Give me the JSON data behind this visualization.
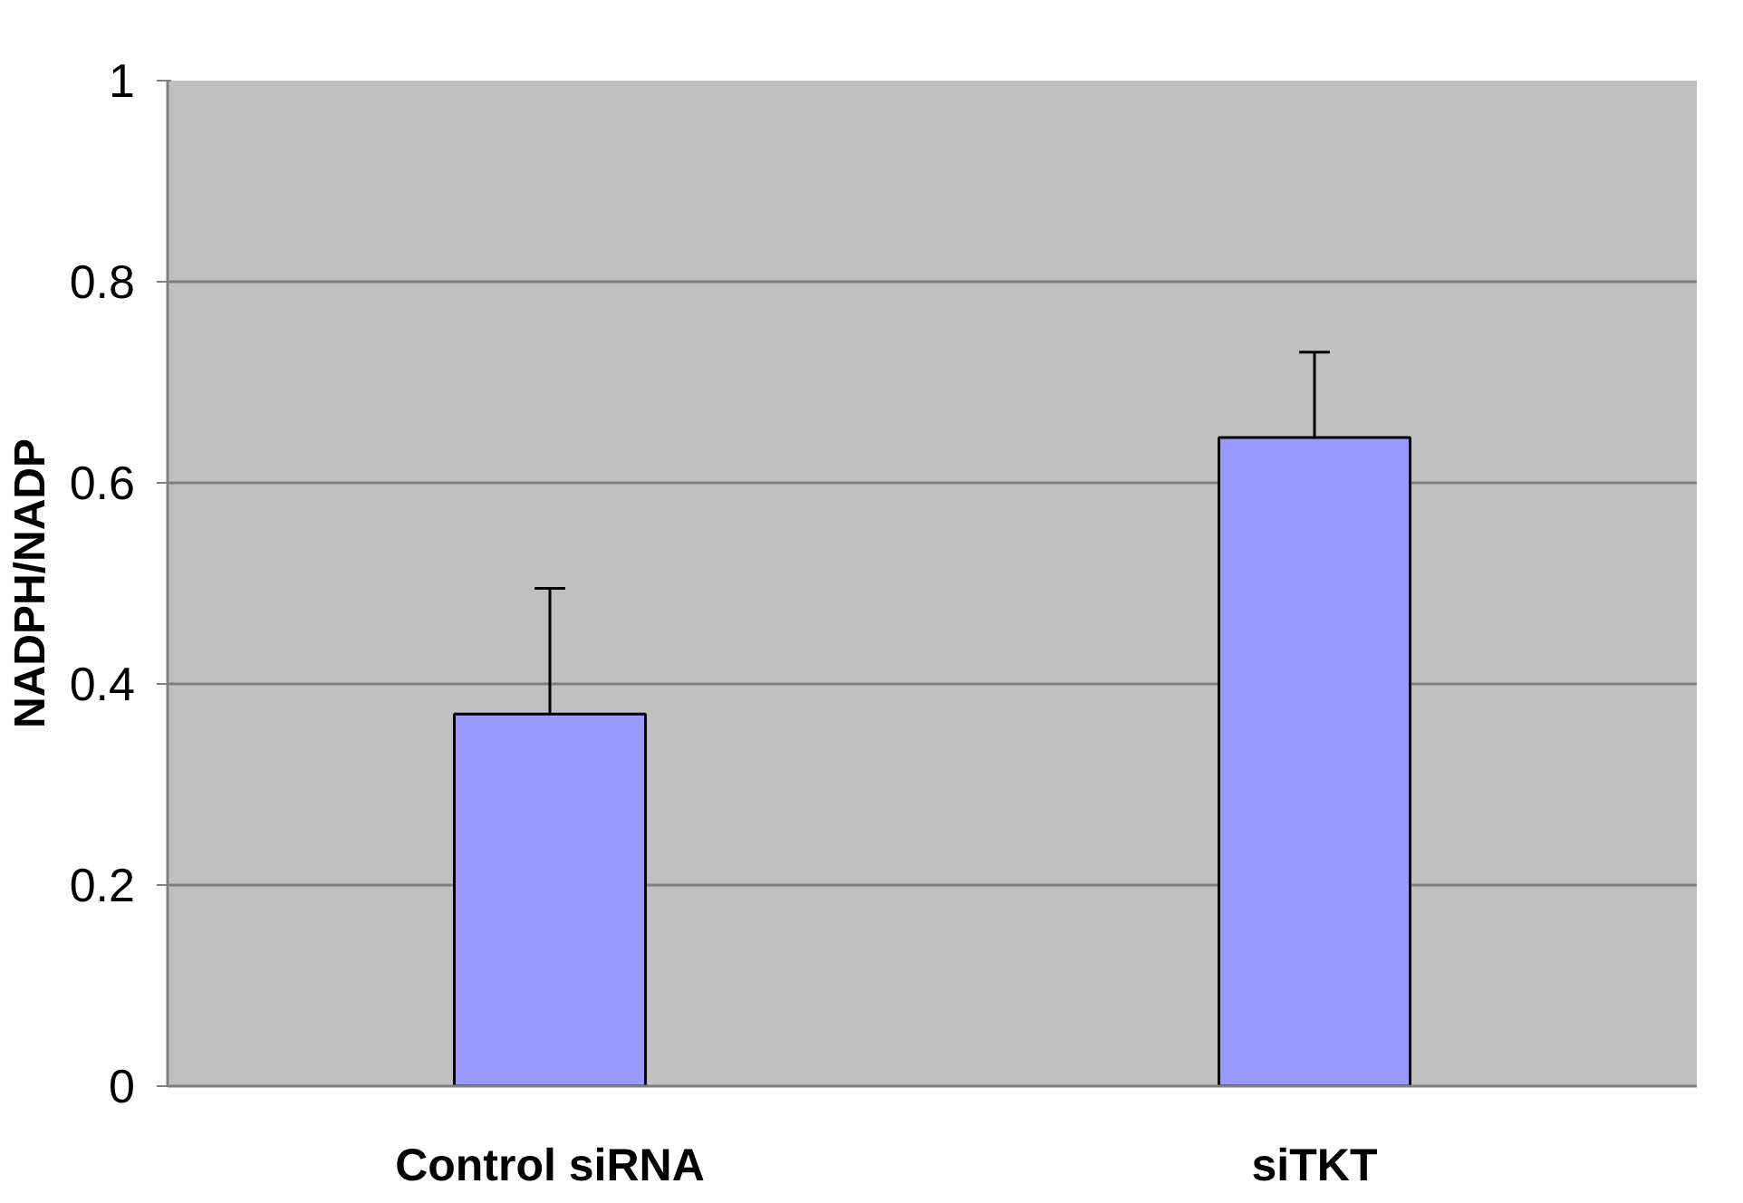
{
  "chart_data": {
    "type": "bar",
    "ylabel": "NADPH/NADP",
    "categories": [
      "Control siRNA",
      "siTKT"
    ],
    "values": [
      0.37,
      0.645
    ],
    "color": "#9999ff",
    "errors": [
      [
        0.37,
        0.495
      ],
      [
        0.645,
        0.73
      ]
    ],
    "ylim": [
      0,
      1
    ],
    "yticks": [
      0,
      0.2,
      0.4,
      0.6,
      0.8,
      1
    ],
    "grid": "y"
  }
}
